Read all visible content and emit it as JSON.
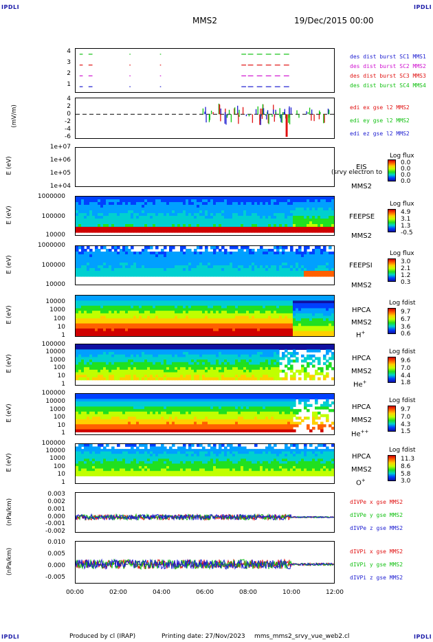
{
  "corner_marks": {
    "tl": "IPDLI",
    "tr": "IPDLI",
    "bl": "IPDLI",
    "br": "IPDLI"
  },
  "header": {
    "spacecraft": "MMS2",
    "date": "19/Dec/2015 00:00"
  },
  "footer": {
    "produced": "Produced by cl (IRAP)",
    "printing": "Printing date: 27/Nov/2023",
    "script": "mms_mms2_srvy_vue_web2.cl"
  },
  "x_axis": {
    "ticks": [
      "00:00",
      "02:00",
      "04:00",
      "06:00",
      "08:00",
      "10:00",
      "12:00"
    ]
  },
  "panels": {
    "burst": {
      "yticks": [
        "4",
        "3",
        "2",
        "1"
      ],
      "labels": [
        {
          "text": "des dist burst SC1 MMS1",
          "color": "#1a1ad0"
        },
        {
          "text": "des dist burst SC2 MMS2",
          "color": "#d010d0"
        },
        {
          "text": "des dist burst SC3 MMS3",
          "color": "#e01010"
        },
        {
          "text": "des dist burst SC4 MMS4",
          "color": "#10c010"
        }
      ]
    },
    "efield": {
      "ylabel": "(mV/m)",
      "yticks": [
        "4",
        "2",
        "0",
        "-2",
        "-4",
        "-6"
      ],
      "labels": [
        {
          "text": "edi ex gse l2 MMS2",
          "color": "#e01010"
        },
        {
          "text": "edi ey gse l2 MMS2",
          "color": "#10c010"
        },
        {
          "text": "edi ez gse l2 MMS2",
          "color": "#1a1ad0"
        }
      ]
    },
    "eis": {
      "ylabel": "E (eV)",
      "yticks": [
        "1e+07",
        "1e+06",
        "1e+05",
        "1e+04"
      ],
      "instrument": "EIS",
      "overlay": "(srvy electron to",
      "sc": "MMS2",
      "cb_title": "Log flux",
      "cb_vals": [
        "0.0",
        "0.0",
        "0.0",
        "0.0"
      ]
    },
    "feepse": {
      "ylabel": "E (eV)",
      "yticks": [
        "1000000",
        "100000",
        "10000"
      ],
      "instrument": "FEEPSE",
      "sc": "MMS2",
      "cb_title": "Log flux",
      "cb_vals": [
        "4.9",
        "3.1",
        "1.3",
        "-0.5"
      ]
    },
    "feepsi": {
      "ylabel": "E (eV)",
      "yticks": [
        "1000000",
        "100000",
        "10000"
      ],
      "instrument": "FEEPSI",
      "sc": "MMS2",
      "cb_title": "Log flux",
      "cb_vals": [
        "3.0",
        "2.1",
        "1.2",
        "0.3"
      ]
    },
    "hpca_h": {
      "ylabel": "E (eV)",
      "yticks": [
        "10000",
        "1000",
        "100",
        "10",
        "1"
      ],
      "instrument": "HPCA",
      "sc": "MMS2",
      "species": "H",
      "charge": "+",
      "cb_title": "Log fdist",
      "cb_vals": [
        "9.7",
        "6.7",
        "3.6",
        "0.6"
      ]
    },
    "hpca_he": {
      "ylabel": "E (eV)",
      "yticks": [
        "100000",
        "10000",
        "1000",
        "100",
        "10",
        "1"
      ],
      "instrument": "HPCA",
      "sc": "MMS2",
      "species": "He",
      "charge": "+",
      "cb_title": "Log fdist",
      "cb_vals": [
        "9.6",
        "7.0",
        "4.4",
        "1.8"
      ]
    },
    "hpca_hepp": {
      "ylabel": "E (eV)",
      "yticks": [
        "100000",
        "10000",
        "1000",
        "100",
        "10",
        "1"
      ],
      "instrument": "HPCA",
      "sc": "MMS2",
      "species": "He",
      "charge": "++",
      "cb_title": "Log fdist",
      "cb_vals": [
        "9.7",
        "7.0",
        "4.3",
        "1.5"
      ]
    },
    "hpca_o": {
      "ylabel": "E (eV)",
      "yticks": [
        "100000",
        "10000",
        "1000",
        "100",
        "10",
        "1"
      ],
      "instrument": "HPCA",
      "sc": "MMS2",
      "species": "O",
      "charge": "+",
      "cb_title": "Log fdist",
      "cb_vals": [
        "11.3",
        "8.6",
        "5.8",
        "3.0"
      ]
    },
    "divpe": {
      "ylabel": "(nPa/km)",
      "yticks": [
        "0.003",
        "0.002",
        "0.001",
        "0.000",
        "-0.001",
        "-0.002"
      ],
      "labels": [
        {
          "text": "dIVPe x gse MMS2",
          "color": "#e01010"
        },
        {
          "text": "dIVPe y gse MMS2",
          "color": "#10c010"
        },
        {
          "text": "dIVPe z gse MMS2",
          "color": "#1a1ad0"
        }
      ]
    },
    "divpi": {
      "ylabel": "(nPa/km)",
      "yticks": [
        "0.010",
        "0.005",
        "0.000",
        "-0.005"
      ],
      "labels": [
        {
          "text": "dIVPi x gse MMS2",
          "color": "#e01010"
        },
        {
          "text": "dIVPi y gse MMS2",
          "color": "#10c010"
        },
        {
          "text": "dIVPi z gse MMS2",
          "color": "#1a1ad0"
        }
      ]
    }
  },
  "chart_data": [
    {
      "type": "scatter",
      "x_range": [
        "00:00",
        "12:00"
      ],
      "ylim": [
        0.5,
        4.5
      ],
      "series": [
        {
          "name": "des dist burst SC1 MMS1",
          "color": "#1a1ad0",
          "y": 1,
          "segments": [
            [
              "00:11",
              "00:20"
            ],
            [
              "00:36",
              "00:47"
            ],
            [
              "02:30",
              "02:33"
            ],
            [
              "03:55",
              "03:58"
            ],
            [
              "07:42",
              "07:55"
            ],
            [
              "08:00",
              "08:15"
            ],
            [
              "08:25",
              "08:40"
            ],
            [
              "08:50",
              "09:05"
            ],
            [
              "09:15",
              "09:30"
            ],
            [
              "09:40",
              "09:55"
            ]
          ]
        },
        {
          "name": "des dist burst SC2 MMS2",
          "color": "#d010d0",
          "y": 2,
          "segments": [
            [
              "00:11",
              "00:20"
            ],
            [
              "00:36",
              "00:47"
            ],
            [
              "02:30",
              "02:33"
            ],
            [
              "03:55",
              "03:58"
            ],
            [
              "07:42",
              "07:55"
            ],
            [
              "08:00",
              "08:15"
            ],
            [
              "08:25",
              "08:40"
            ],
            [
              "08:50",
              "09:05"
            ],
            [
              "09:15",
              "09:30"
            ],
            [
              "09:40",
              "09:55"
            ]
          ]
        },
        {
          "name": "des dist burst SC3 MMS3",
          "color": "#e01010",
          "y": 3,
          "segments": [
            [
              "00:11",
              "00:20"
            ],
            [
              "00:36",
              "00:47"
            ],
            [
              "02:30",
              "02:33"
            ],
            [
              "03:55",
              "03:58"
            ],
            [
              "07:42",
              "07:55"
            ],
            [
              "08:00",
              "08:15"
            ],
            [
              "08:25",
              "08:40"
            ],
            [
              "08:50",
              "09:05"
            ],
            [
              "09:15",
              "09:30"
            ],
            [
              "09:40",
              "09:55"
            ]
          ]
        },
        {
          "name": "des dist burst SC4 MMS4",
          "color": "#10c010",
          "y": 4,
          "segments": [
            [
              "00:11",
              "00:20"
            ],
            [
              "00:36",
              "00:47"
            ],
            [
              "02:30",
              "02:33"
            ],
            [
              "03:55",
              "03:58"
            ],
            [
              "07:42",
              "07:55"
            ],
            [
              "08:00",
              "08:15"
            ],
            [
              "08:25",
              "08:40"
            ],
            [
              "08:50",
              "09:05"
            ],
            [
              "09:15",
              "09:30"
            ],
            [
              "09:40",
              "09:55"
            ]
          ]
        }
      ]
    },
    {
      "type": "line",
      "ylim": [
        -6,
        4
      ],
      "active_range": [
        "05:55",
        "12:00"
      ]
    },
    {
      "type": "heatmap",
      "ylim": [
        10000,
        10000000
      ],
      "note_text": "EIS"
    },
    {
      "type": "heatmap",
      "ylim": [
        10000,
        1000000
      ]
    },
    {
      "type": "heatmap",
      "ylim": [
        10000,
        1000000
      ]
    },
    {
      "type": "heatmap",
      "ylim": [
        1,
        20000
      ]
    },
    {
      "type": "heatmap",
      "ylim": [
        1,
        100000
      ]
    },
    {
      "type": "heatmap",
      "ylim": [
        1,
        100000
      ]
    },
    {
      "type": "heatmap",
      "ylim": [
        1,
        100000
      ]
    },
    {
      "type": "line",
      "ylim": [
        -0.002,
        0.003
      ]
    },
    {
      "type": "line",
      "ylim": [
        -0.0075,
        0.01
      ]
    }
  ]
}
